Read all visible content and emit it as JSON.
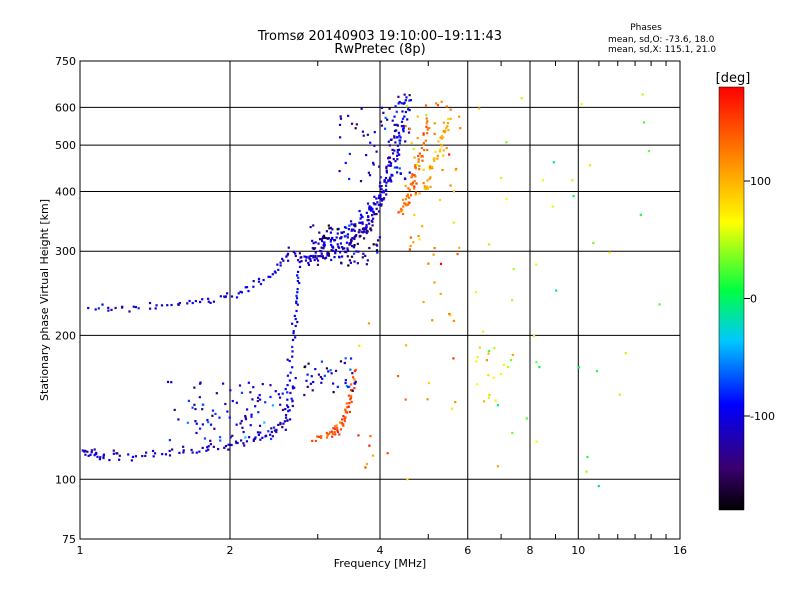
{
  "chart_data": {
    "type": "scatter",
    "title": "Tromsø 20140903 19:10:00–19:11:43",
    "subtitle": "RwPretec (8p)",
    "xlabel": "Frequency [MHz]",
    "ylabel": "Stationary phase Virtual Height [km]",
    "x_scale": "log",
    "y_scale": "log",
    "xlim": [
      1,
      16
    ],
    "ylim": [
      75,
      750
    ],
    "x_ticks": [
      {
        "value": 1,
        "label": "1"
      },
      {
        "value": 2,
        "label": "2"
      },
      {
        "value": 4,
        "label": "4"
      },
      {
        "value": 6,
        "label": "6"
      },
      {
        "value": 8,
        "label": "8"
      },
      {
        "value": 10,
        "label": "10"
      },
      {
        "value": 16,
        "label": "16"
      }
    ],
    "y_ticks": [
      {
        "value": 75,
        "label": "75"
      },
      {
        "value": 100,
        "label": "100"
      },
      {
        "value": 200,
        "label": "200"
      },
      {
        "value": 300,
        "label": "300"
      },
      {
        "value": 400,
        "label": "400"
      },
      {
        "value": 500,
        "label": "500"
      },
      {
        "value": 600,
        "label": "600"
      },
      {
        "value": 750,
        "label": "750"
      }
    ],
    "grid": true,
    "stats": {
      "heading": "Phases",
      "line_o": "mean, sd,O: -73.6, 18.0",
      "line_x": "mean, sd,X: 115.1, 21.0"
    },
    "colorbar": {
      "label": "[deg]",
      "range": [
        -180,
        180
      ],
      "tick_labels": [
        "100",
        "0",
        "-100"
      ],
      "tick_values": [
        100,
        0,
        -100
      ],
      "colormap": "rainbow (black-purple-blue-cyan-green-yellow-orange-red)"
    },
    "traces": [
      {
        "kind": "curve",
        "x": [
          1.0,
          1.05,
          1.1,
          1.2,
          1.4,
          1.6,
          1.8,
          2.0,
          2.2,
          2.4,
          2.55,
          2.65,
          2.7
        ],
        "y": [
          115,
          113,
          112,
          112,
          113,
          114,
          116,
          118,
          121,
          125,
          130,
          140,
          160
        ],
        "phase": -110,
        "spread": 3,
        "n": 110
      },
      {
        "kind": "curve",
        "x": [
          2.6,
          2.62,
          2.65,
          2.68,
          2.7,
          2.72,
          2.74,
          2.76
        ],
        "y": [
          140,
          160,
          180,
          200,
          220,
          240,
          260,
          290
        ],
        "phase": -95,
        "spread": 2,
        "n": 40
      },
      {
        "kind": "curve",
        "x": [
          1.05,
          1.2,
          1.4,
          1.6,
          1.8,
          2.0,
          2.2,
          2.4,
          2.55,
          2.65
        ],
        "y": [
          228,
          228,
          230,
          233,
          237,
          243,
          252,
          265,
          285,
          305
        ],
        "phase": -105,
        "spread": 3,
        "n": 70
      },
      {
        "kind": "curve",
        "x": [
          2.75,
          2.9,
          3.1,
          3.3,
          3.5,
          3.7,
          3.85,
          4.0,
          4.1,
          4.2,
          4.3
        ],
        "y": [
          290,
          288,
          292,
          300,
          315,
          330,
          350,
          380,
          420,
          480,
          560
        ],
        "phase": -115,
        "spread": 4,
        "n": 130
      },
      {
        "kind": "curve",
        "x": [
          3.0,
          3.2,
          3.4,
          3.6,
          3.8,
          4.0,
          4.2,
          4.35,
          4.45,
          4.55
        ],
        "y": [
          305,
          315,
          330,
          345,
          365,
          390,
          430,
          490,
          560,
          640
        ],
        "phase": -100,
        "spread": 4,
        "n": 130
      },
      {
        "kind": "curve",
        "x": [
          4.4,
          4.5,
          4.6,
          4.7,
          4.8,
          4.9,
          5.0
        ],
        "y": [
          360,
          380,
          400,
          430,
          460,
          500,
          560
        ],
        "phase": 130,
        "spread": 3,
        "n": 60
      },
      {
        "kind": "curve",
        "x": [
          4.9,
          5.0,
          5.1,
          5.2,
          5.3,
          5.4,
          5.5
        ],
        "y": [
          400,
          420,
          450,
          480,
          510,
          540,
          570
        ],
        "phase": 100,
        "spread": 3,
        "n": 40
      },
      {
        "kind": "curve",
        "x": [
          2.95,
          3.1,
          3.25,
          3.4,
          3.5,
          3.58
        ],
        "y": [
          122,
          124,
          128,
          136,
          150,
          170
        ],
        "phase": 140,
        "spread": 2,
        "n": 40
      },
      {
        "kind": "curve",
        "x": [
          3.2,
          3.35,
          3.45,
          3.55
        ],
        "y": [
          122,
          128,
          140,
          160
        ],
        "phase": 150,
        "spread": 2,
        "n": 25
      },
      {
        "kind": "cloud",
        "xr": [
          1.5,
          2.6
        ],
        "yr": [
          120,
          160
        ],
        "phase": -95,
        "n": 90
      },
      {
        "kind": "cloud",
        "xr": [
          2.8,
          3.6
        ],
        "yr": [
          150,
          185
        ],
        "phase": -110,
        "n": 40
      },
      {
        "kind": "cloud",
        "xr": [
          2.9,
          4.0
        ],
        "yr": [
          280,
          340
        ],
        "phase": -125,
        "n": 90
      },
      {
        "kind": "cloud",
        "xr": [
          3.3,
          4.6
        ],
        "yr": [
          420,
          640
        ],
        "phase": -105,
        "n": 60
      },
      {
        "kind": "cloud",
        "xr": [
          4.5,
          5.8
        ],
        "yr": [
          280,
          620
        ],
        "phase": 110,
        "n": 60
      },
      {
        "kind": "cloud",
        "xr": [
          6.2,
          7.4
        ],
        "yr": [
          140,
          190
        ],
        "phase": 60,
        "n": 20
      },
      {
        "kind": "cloud",
        "xr": [
          6.2,
          15.0
        ],
        "yr": [
          90,
          640
        ],
        "phase": 40,
        "n": 40
      },
      {
        "kind": "cloud",
        "xr": [
          3.6,
          5.8
        ],
        "yr": [
          100,
          260
        ],
        "phase": 120,
        "n": 25
      }
    ]
  }
}
